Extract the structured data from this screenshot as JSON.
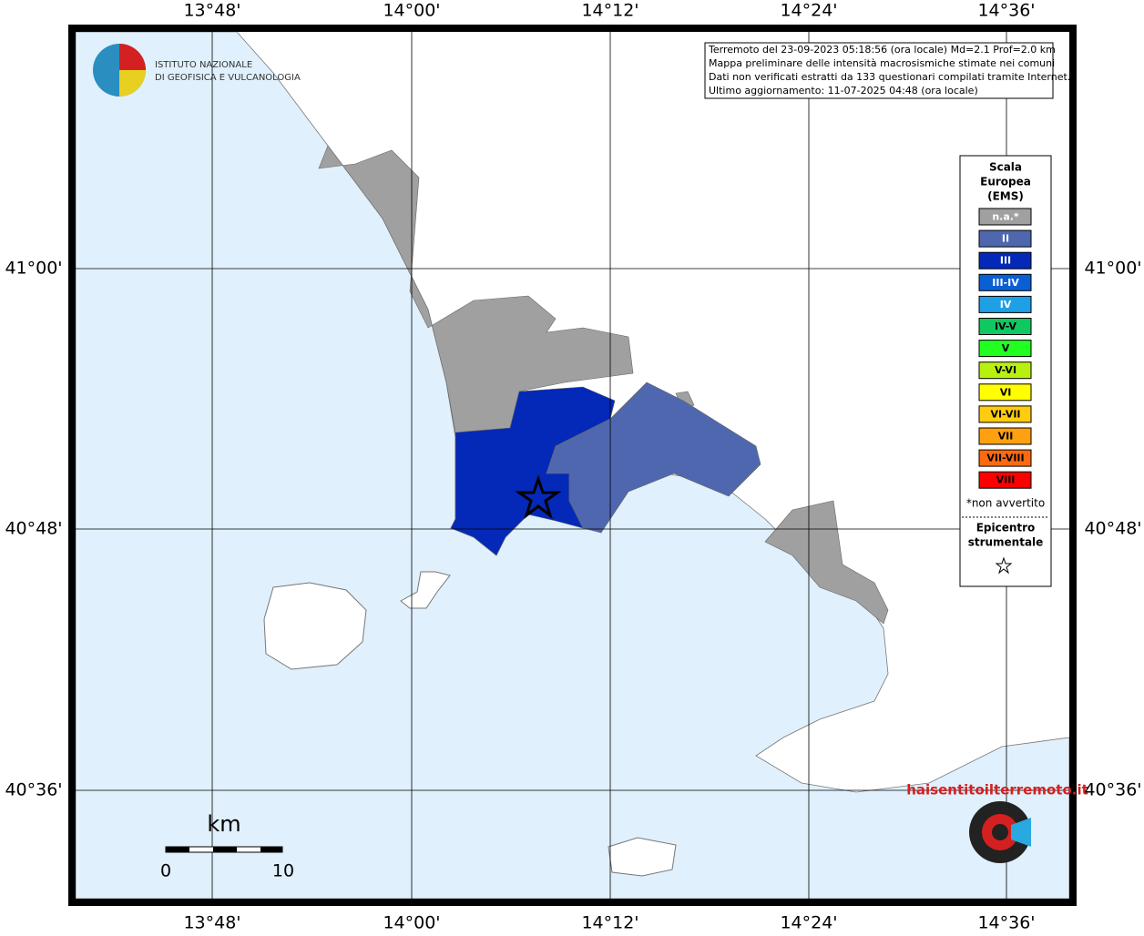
{
  "map": {
    "x_ticks": [
      "13°48'",
      "14°00'",
      "14°12'",
      "14°24'",
      "14°36'"
    ],
    "y_ticks": [
      "41°00'",
      "40°48'",
      "40°36'"
    ],
    "info": [
      "Terremoto del 23-09-2023 05:18:56 (ora locale) Md=2.1 Prof=2.0 km",
      "Mappa preliminare delle intensità macrosismiche stimate nei comuni",
      "Dati non verificati estratti da 133 questionari compilati tramite Internet.",
      "Ultimo aggiornamento: 11-07-2025 04:48 (ora locale)"
    ],
    "logo": {
      "line1": "ISTITUTO NAZIONALE",
      "line2": "DI GEOFISICA E VULCANOLOGIA"
    },
    "legend": {
      "title": [
        "Scala",
        "Europea",
        "(EMS)"
      ],
      "items": [
        {
          "label": "n.a.*",
          "color": "#a0a0a0"
        },
        {
          "label": "II",
          "color": "#4f67ae"
        },
        {
          "label": "III",
          "color": "#0429b8"
        },
        {
          "label": "III-IV",
          "color": "#0a5fd4"
        },
        {
          "label": "IV",
          "color": "#1ea0e6"
        },
        {
          "label": "IV-V",
          "color": "#10c860"
        },
        {
          "label": "V",
          "color": "#20ff20"
        },
        {
          "label": "V-VI",
          "color": "#b8f010"
        },
        {
          "label": "VI",
          "color": "#ffff00"
        },
        {
          "label": "VI-VII",
          "color": "#ffcc10"
        },
        {
          "label": "VII",
          "color": "#ffa010"
        },
        {
          "label": "VII-VIII",
          "color": "#ff6a10"
        },
        {
          "label": "VIII",
          "color": "#ff0000"
        }
      ],
      "note": "*non avvertito",
      "epicenter": [
        "Epicentro",
        "strumentale"
      ]
    },
    "scale": {
      "unit": "km",
      "labels": [
        "0",
        "10"
      ]
    },
    "site": "haisentitoilterremoto.it"
  }
}
